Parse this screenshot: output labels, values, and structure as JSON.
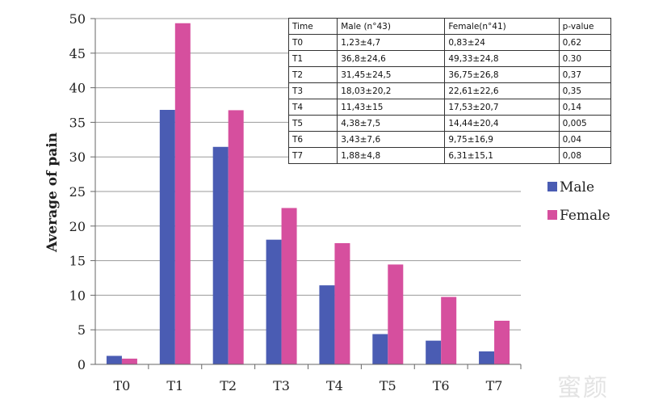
{
  "chart_data": {
    "type": "bar",
    "categories": [
      "T0",
      "T1",
      "T2",
      "T3",
      "T4",
      "T5",
      "T6",
      "T7"
    ],
    "series": [
      {
        "name": "Male",
        "color": "#4a5cb3",
        "values": [
          1.23,
          36.8,
          31.45,
          18.03,
          11.43,
          4.38,
          3.43,
          1.88
        ]
      },
      {
        "name": "Female",
        "color": "#d64f9e",
        "values": [
          0.83,
          49.33,
          36.75,
          22.61,
          17.53,
          14.44,
          9.75,
          6.31
        ]
      }
    ],
    "title": "",
    "xlabel": "",
    "ylabel": "Average of pain",
    "ylim": [
      0,
      50
    ],
    "yticks": [
      0,
      5,
      10,
      15,
      20,
      25,
      30,
      35,
      40,
      45,
      50
    ],
    "grid": true,
    "legend_position": "right"
  },
  "table": {
    "headers": [
      "Time",
      "Male (n°43)",
      "Female(n°41)",
      "p-value"
    ],
    "rows": [
      [
        "T0",
        "1,23±4,7",
        "0,83±24",
        "0,62"
      ],
      [
        "T1",
        "36,8±24,6",
        "49,33±24,8",
        "0.30"
      ],
      [
        "T2",
        "31,45±24,5",
        "36,75±26,8",
        "0,37"
      ],
      [
        "T3",
        "18,03±20,2",
        "22,61±22,6",
        "0,35"
      ],
      [
        "T4",
        "11,43±15",
        "17,53±20,7",
        "0,14"
      ],
      [
        "T5",
        "4,38±7,5",
        "14,44±20,4",
        "0,005"
      ],
      [
        "T6",
        "3,43±7,6",
        "9,75±16,9",
        "0,04"
      ],
      [
        "T7",
        "1,88±4,8",
        "6,31±15,1",
        "0,08"
      ]
    ]
  },
  "watermark": "蜜颜"
}
